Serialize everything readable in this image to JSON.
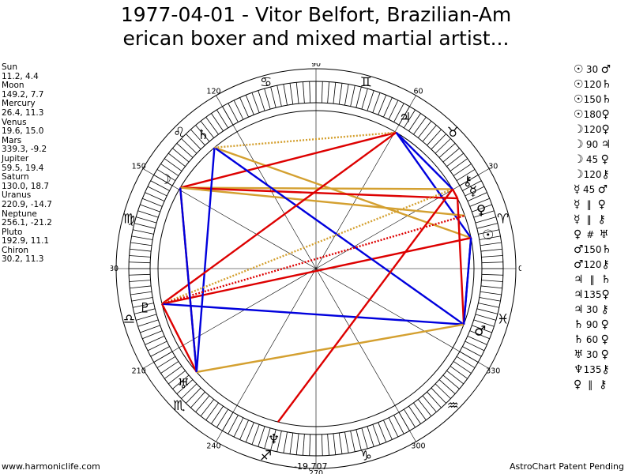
{
  "header": {
    "title_line1": "1977-04-01 - Vitor Belfort, Brazilian-Am",
    "title_line2": "erican boxer and mixed martial artist..."
  },
  "footer": {
    "left": "www.harmoniclife.com",
    "center": "-19,707",
    "right": "AstroChart Patent Pending"
  },
  "planet_list": [
    {
      "name": "Sun",
      "values": "11.2, 4.4"
    },
    {
      "name": "Moon",
      "values": "149.2, 7.7"
    },
    {
      "name": "Mercury",
      "values": "26.4, 11.3"
    },
    {
      "name": "Venus",
      "values": "19.6, 15.0"
    },
    {
      "name": "Mars",
      "values": "339.3, -9.2"
    },
    {
      "name": "Jupiter",
      "values": "59.5, 19.4"
    },
    {
      "name": "Saturn",
      "values": "130.0, 18.7"
    },
    {
      "name": "Uranus",
      "values": "220.9, -14.7"
    },
    {
      "name": "Neptune",
      "values": "256.1, -21.2"
    },
    {
      "name": "Pluto",
      "values": "192.9, 11.1"
    },
    {
      "name": "Chiron",
      "values": "30.2, 11.3"
    }
  ],
  "aspect_list": [
    {
      "p1": "☉",
      "aspect": "30",
      "p2": "♂"
    },
    {
      "p1": "☉",
      "aspect": "120",
      "p2": "♄"
    },
    {
      "p1": "☉",
      "aspect": "150",
      "p2": "♄"
    },
    {
      "p1": "☉",
      "aspect": "180",
      "p2": "♀"
    },
    {
      "p1": "☽",
      "aspect": "120",
      "p2": "♀"
    },
    {
      "p1": "☽",
      "aspect": "90",
      "p2": "♃"
    },
    {
      "p1": "☽",
      "aspect": "45",
      "p2": "♀"
    },
    {
      "p1": "☽",
      "aspect": "120",
      "p2": "⚷"
    },
    {
      "p1": "☿",
      "aspect": "45",
      "p2": "♂"
    },
    {
      "p1": "☿",
      "aspect": "‖",
      "p2": "♀"
    },
    {
      "p1": "☿",
      "aspect": "‖",
      "p2": "⚷"
    },
    {
      "p1": "♀",
      "aspect": "#",
      "p2": "♅"
    },
    {
      "p1": "♂",
      "aspect": "150",
      "p2": "♄"
    },
    {
      "p1": "♂",
      "aspect": "120",
      "p2": "⚷"
    },
    {
      "p1": "♃",
      "aspect": "‖",
      "p2": "♄"
    },
    {
      "p1": "♃",
      "aspect": "135",
      "p2": "♀"
    },
    {
      "p1": "♃",
      "aspect": "30",
      "p2": "⚷"
    },
    {
      "p1": "♄",
      "aspect": "90",
      "p2": "♀"
    },
    {
      "p1": "♄",
      "aspect": "60",
      "p2": "♀"
    },
    {
      "p1": "♅",
      "aspect": "30",
      "p2": "♀"
    },
    {
      "p1": "♆",
      "aspect": "135",
      "p2": "⚷"
    },
    {
      "p1": "♀",
      "aspect": "‖",
      "p2": "⚷"
    }
  ],
  "chart_data": {
    "type": "astrological-wheel",
    "degree_labels": [
      "90",
      "120",
      "150",
      "180",
      "210",
      "240",
      "270",
      "300",
      "330",
      "0",
      "30",
      "60"
    ],
    "signs": [
      "♈",
      "♉",
      "♊",
      "♋",
      "♌",
      "♍",
      "♎",
      "♏",
      "♐",
      "♑",
      "♒",
      "♓"
    ],
    "planets": [
      {
        "name": "Sun",
        "glyph": "☉",
        "lon": 11.2
      },
      {
        "name": "Moon",
        "glyph": "☽",
        "lon": 149.2
      },
      {
        "name": "Mercury",
        "glyph": "☿",
        "lon": 26.4
      },
      {
        "name": "Venus",
        "glyph": "♀",
        "lon": 19.6
      },
      {
        "name": "Mars",
        "glyph": "♂",
        "lon": 339.3
      },
      {
        "name": "Jupiter",
        "glyph": "♃",
        "lon": 59.5
      },
      {
        "name": "Saturn",
        "glyph": "♄",
        "lon": 130.0
      },
      {
        "name": "Uranus",
        "glyph": "♅",
        "lon": 220.9
      },
      {
        "name": "Neptune",
        "glyph": "♆",
        "lon": 256.1
      },
      {
        "name": "Pluto",
        "glyph": "♇",
        "lon": 192.9
      },
      {
        "name": "Chiron",
        "glyph": "⚷",
        "lon": 30.2
      }
    ],
    "aspect_lines": [
      {
        "from": 11.2,
        "to": 130.0,
        "color": "#d4a030",
        "style": "solid"
      },
      {
        "from": 11.2,
        "to": 339.3,
        "color": "#0000dd",
        "style": "solid"
      },
      {
        "from": 11.2,
        "to": 59.5,
        "color": "#0000dd",
        "style": "solid"
      },
      {
        "from": 11.2,
        "to": 192.9,
        "color": "#dd0000",
        "style": "solid"
      },
      {
        "from": 149.2,
        "to": 30.2,
        "color": "#d4a030",
        "style": "solid"
      },
      {
        "from": 149.2,
        "to": 26.4,
        "color": "#dd0000",
        "style": "solid"
      },
      {
        "from": 149.2,
        "to": 59.5,
        "color": "#dd0000",
        "style": "solid"
      },
      {
        "from": 149.2,
        "to": 19.6,
        "color": "#d4a030",
        "style": "solid"
      },
      {
        "from": 149.2,
        "to": 220.9,
        "color": "#dd0000",
        "style": "solid"
      },
      {
        "from": 130.0,
        "to": 220.9,
        "color": "#0000dd",
        "style": "solid"
      },
      {
        "from": 130.0,
        "to": 339.3,
        "color": "#0000dd",
        "style": "solid"
      },
      {
        "from": 130.0,
        "to": 59.5,
        "color": "#d4a030",
        "style": "dotted"
      },
      {
        "from": 59.5,
        "to": 192.9,
        "color": "#dd0000",
        "style": "solid"
      },
      {
        "from": 59.5,
        "to": 30.2,
        "color": "#0000dd",
        "style": "solid"
      },
      {
        "from": 192.9,
        "to": 30.2,
        "color": "#d4a030",
        "style": "dotted"
      },
      {
        "from": 192.9,
        "to": 220.9,
        "color": "#dd0000",
        "style": "solid"
      },
      {
        "from": 192.9,
        "to": 339.3,
        "color": "#0000dd",
        "style": "solid"
      },
      {
        "from": 192.9,
        "to": 19.6,
        "color": "#dd0000",
        "style": "dotted"
      },
      {
        "from": 220.9,
        "to": 339.3,
        "color": "#d4a030",
        "style": "solid"
      },
      {
        "from": 220.9,
        "to": 149.2,
        "color": "#0000dd",
        "style": "solid"
      },
      {
        "from": 256.1,
        "to": 30.2,
        "color": "#dd0000",
        "style": "solid"
      },
      {
        "from": 339.3,
        "to": 26.4,
        "color": "#dd0000",
        "style": "solid"
      },
      {
        "from": 339.3,
        "to": 11.2,
        "color": "#0000dd",
        "style": "solid"
      },
      {
        "from": 30.2,
        "to": 26.4,
        "color": "#dd0000",
        "style": "solid"
      }
    ]
  }
}
